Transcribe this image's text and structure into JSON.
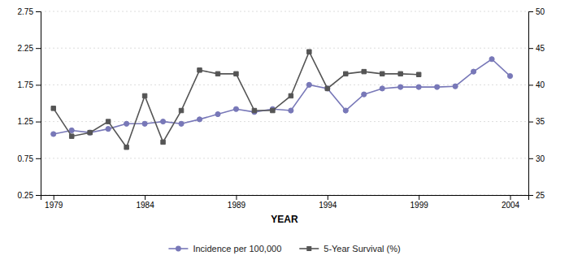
{
  "chart_data": {
    "type": "line",
    "x": [
      1979,
      1980,
      1981,
      1982,
      1983,
      1984,
      1985,
      1986,
      1987,
      1988,
      1989,
      1990,
      1991,
      1992,
      1993,
      1994,
      1995,
      1996,
      1997,
      1998,
      1999,
      2000,
      2001,
      2002,
      2003,
      2004
    ],
    "xlim": [
      1978.3,
      2005.0
    ],
    "xticks": [
      1979,
      1984,
      1989,
      1994,
      1999,
      2004
    ],
    "xlabel": "YEAR",
    "ylim": [
      0.25,
      2.75
    ],
    "yticks": [
      0.25,
      0.75,
      1.25,
      1.75,
      2.25,
      2.75
    ],
    "y2lim": [
      25,
      50
    ],
    "y2ticks": [
      25,
      30,
      35,
      40,
      45,
      50
    ],
    "grid": true,
    "legend": "bottom",
    "series": [
      {
        "name": "Incidence per 100,000",
        "color": "#7878b8",
        "marker": "circle",
        "values": [
          1.08,
          1.13,
          1.1,
          1.15,
          1.22,
          1.22,
          1.25,
          1.22,
          1.28,
          1.35,
          1.42,
          1.38,
          1.42,
          1.4,
          1.75,
          1.7,
          1.4,
          1.62,
          1.7,
          1.72,
          1.72,
          1.72,
          1.73,
          1.93,
          2.1,
          1.87
        ]
      },
      {
        "name": "5-Year Survival (%)",
        "color": "#555555",
        "marker": "square",
        "axis": "y2",
        "values": [
          36.8,
          33.0,
          33.5,
          35.0,
          31.5,
          38.5,
          32.2,
          36.5,
          42.0,
          41.5,
          41.5,
          36.5,
          36.5,
          38.5,
          44.5,
          39.5,
          41.5,
          41.8,
          41.5,
          41.5,
          41.4,
          null,
          null,
          null,
          null,
          null
        ]
      }
    ]
  }
}
